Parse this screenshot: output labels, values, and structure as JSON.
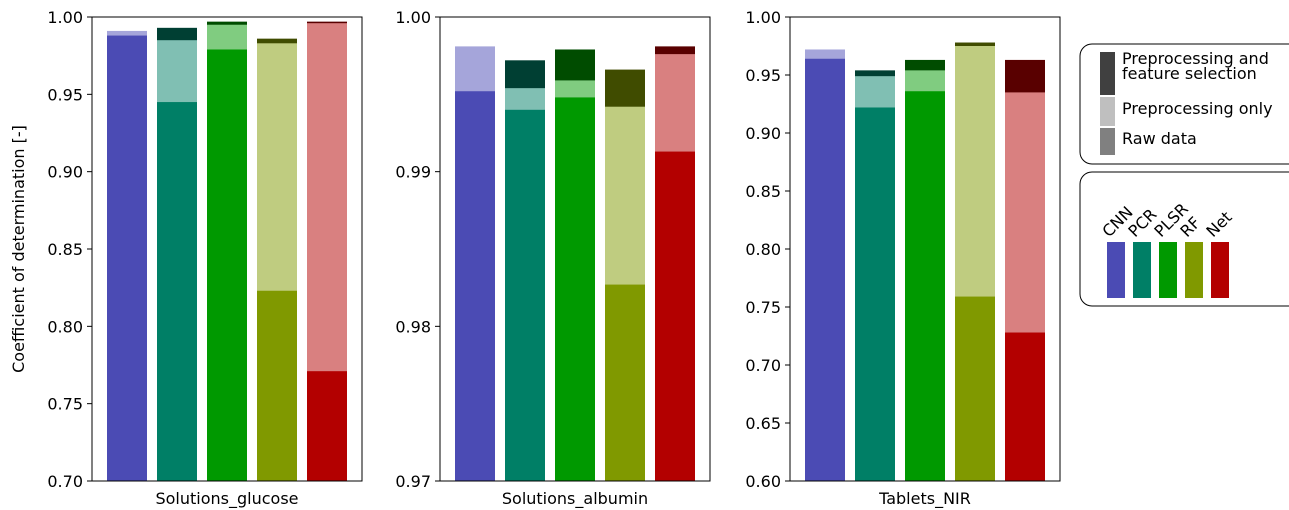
{
  "y_label": "Coefficient of determination [-]",
  "legend": {
    "entries": [
      {
        "name": "Preprocessing and feature selection",
        "color": "#404040",
        "bar_colors": [
          "#262666",
          "#003f33",
          "#004c00",
          "#404c00",
          "#590000"
        ]
      },
      {
        "name": "Preprocessing only",
        "color": "#bfbfbf",
        "bar_colors": [
          "#a5a5da",
          "#80bfb3",
          "#80cc80",
          "#bfcc80",
          "#d98080"
        ]
      },
      {
        "name": "Raw data",
        "color": "#808080",
        "bar_colors": [
          "#4b4bb4",
          "#007f66",
          "#009900",
          "#809900",
          "#b30000"
        ]
      }
    ]
  },
  "category_legend": {
    "categories": [
      "CNN",
      "PCR",
      "PLSR",
      "RF",
      "Net"
    ],
    "colors": [
      "#4b4bb4",
      "#007f66",
      "#009900",
      "#809900",
      "#b30000"
    ]
  },
  "chart_data": [
    {
      "type": "bar",
      "x_label": "Solutions_glucose",
      "ylim": [
        0.7,
        1
      ],
      "yticks": [
        {
          "value": 0.7,
          "label": "0.70"
        },
        0.75,
        {
          "value": 0.8,
          "label": "0.80"
        },
        0.85,
        {
          "value": 0.9,
          "label": "0.90"
        },
        0.95,
        {
          "value": 1,
          "label": "1.00"
        }
      ],
      "series": [
        {
          "values": [
            null,
            0.993,
            0.997,
            0.986,
            0.997
          ]
        },
        {
          "values": [
            0.991,
            0.985,
            0.995,
            0.983,
            0.996
          ]
        },
        {
          "values": [
            0.988,
            0.945,
            0.979,
            0.823,
            0.771
          ]
        }
      ]
    },
    {
      "type": "bar",
      "x_label": "Solutions_albumin",
      "ylim": [
        0.97,
        1
      ],
      "yticks": [
        0.97,
        0.98,
        0.99,
        {
          "value": 1,
          "label": "1.00"
        }
      ],
      "series": [
        {
          "values": [
            null,
            0.9972,
            0.9979,
            0.9966,
            0.9981
          ]
        },
        {
          "values": [
            0.9981,
            0.9954,
            0.9959,
            0.9942,
            0.9976
          ]
        },
        {
          "values": [
            0.9952,
            0.994,
            0.9948,
            0.9827,
            0.9913
          ]
        }
      ]
    },
    {
      "type": "bar",
      "x_label": "Tablets_NIR",
      "ylim": [
        0.6,
        1
      ],
      "yticks": [
        {
          "value": 0.6,
          "label": "0.60"
        },
        0.65,
        {
          "value": 0.7,
          "label": "0.70"
        },
        0.75,
        {
          "value": 0.8,
          "label": "0.80"
        },
        0.85,
        {
          "value": 0.9,
          "label": "0.90"
        },
        0.95,
        {
          "value": 1,
          "label": "1.00"
        }
      ],
      "series": [
        {
          "values": [
            null,
            0.954,
            0.963,
            0.978,
            0.963
          ]
        },
        {
          "values": [
            0.972,
            0.949,
            0.954,
            0.975,
            0.935
          ]
        },
        {
          "values": [
            0.964,
            0.922,
            0.936,
            0.759,
            0.728
          ]
        }
      ]
    }
  ]
}
